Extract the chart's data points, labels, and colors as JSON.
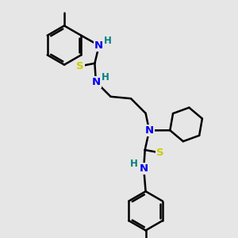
{
  "background_color": "#e6e6e6",
  "N_color": "#0000ee",
  "S_color": "#cccc00",
  "H_color": "#008080",
  "bond_color": "#000000",
  "bond_lw": 1.8,
  "figsize": [
    3.0,
    3.0
  ],
  "dpi": 100,
  "xlim": [
    0.0,
    10.0
  ],
  "ylim": [
    0.0,
    10.0
  ]
}
